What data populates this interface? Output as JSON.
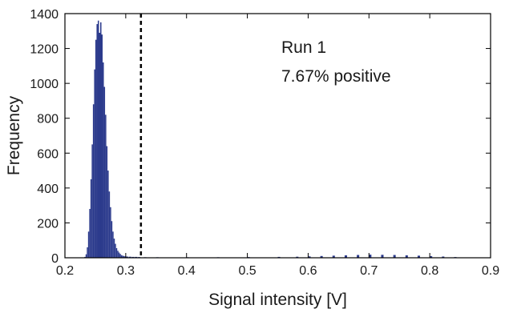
{
  "chart_data": {
    "type": "bar",
    "title": "",
    "xlabel": "Signal intensity [V]",
    "ylabel": "Frequency",
    "xlim": [
      0.2,
      0.9
    ],
    "ylim": [
      0,
      1400
    ],
    "xticks": [
      "0.2",
      "0.3",
      "0.4",
      "0.5",
      "0.6",
      "0.7",
      "0.8",
      "0.9"
    ],
    "yticks": [
      "0",
      "200",
      "400",
      "600",
      "800",
      "1000",
      "1200",
      "1400"
    ],
    "bar_color": "#2b3a8c",
    "threshold": {
      "x": 0.325,
      "style": "dashed",
      "color": "#000000"
    },
    "annotations": [
      {
        "text": "Run 1"
      },
      {
        "text": "7.67% positive"
      }
    ],
    "series": [
      {
        "x": [
          0.232,
          0.234,
          0.236,
          0.238,
          0.24,
          0.242,
          0.244,
          0.246,
          0.248,
          0.25,
          0.252,
          0.254,
          0.256,
          0.258,
          0.26,
          0.262,
          0.264,
          0.266,
          0.268,
          0.27,
          0.272,
          0.274,
          0.276,
          0.278,
          0.28,
          0.282,
          0.284,
          0.286,
          0.288,
          0.29,
          0.292,
          0.294,
          0.296,
          0.298,
          0.3,
          0.305,
          0.31,
          0.315,
          0.32,
          0.33,
          0.35,
          0.4,
          0.45,
          0.5,
          0.55,
          0.58,
          0.6,
          0.62,
          0.64,
          0.66,
          0.68,
          0.7,
          0.72,
          0.74,
          0.76,
          0.78,
          0.8,
          0.82,
          0.84,
          0.86
        ],
        "values": [
          5,
          20,
          60,
          150,
          280,
          450,
          650,
          880,
          1080,
          1250,
          1340,
          1360,
          1290,
          1350,
          1280,
          1120,
          980,
          820,
          640,
          500,
          380,
          290,
          210,
          150,
          110,
          80,
          55,
          40,
          30,
          22,
          15,
          12,
          10,
          8,
          7,
          6,
          5,
          5,
          4,
          3,
          3,
          3,
          3,
          4,
          5,
          6,
          8,
          10,
          12,
          14,
          16,
          18,
          17,
          16,
          14,
          12,
          9,
          7,
          4,
          2
        ]
      }
    ]
  }
}
